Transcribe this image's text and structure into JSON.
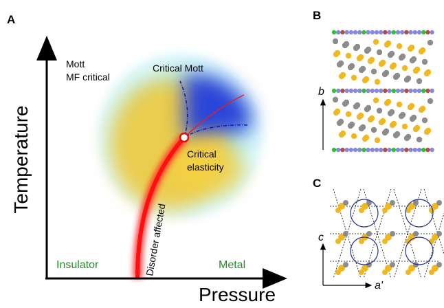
{
  "panels": {
    "a": {
      "letter": "A",
      "y_axis": "Temperature",
      "x_axis": "Pressure",
      "labels": {
        "mott": "Mott",
        "mf_critical": "MF critical",
        "critical_mott": "Critical Mott",
        "critical": "Critical",
        "elasticity": "elasticity",
        "disorder": "Disorder affected",
        "insulator": "Insulator",
        "metal": "Metal"
      }
    },
    "b": {
      "letter": "B",
      "axis": "b"
    },
    "c": {
      "letter": "C",
      "axis_vertical": "c",
      "axis_horizontal": "a'"
    }
  }
}
